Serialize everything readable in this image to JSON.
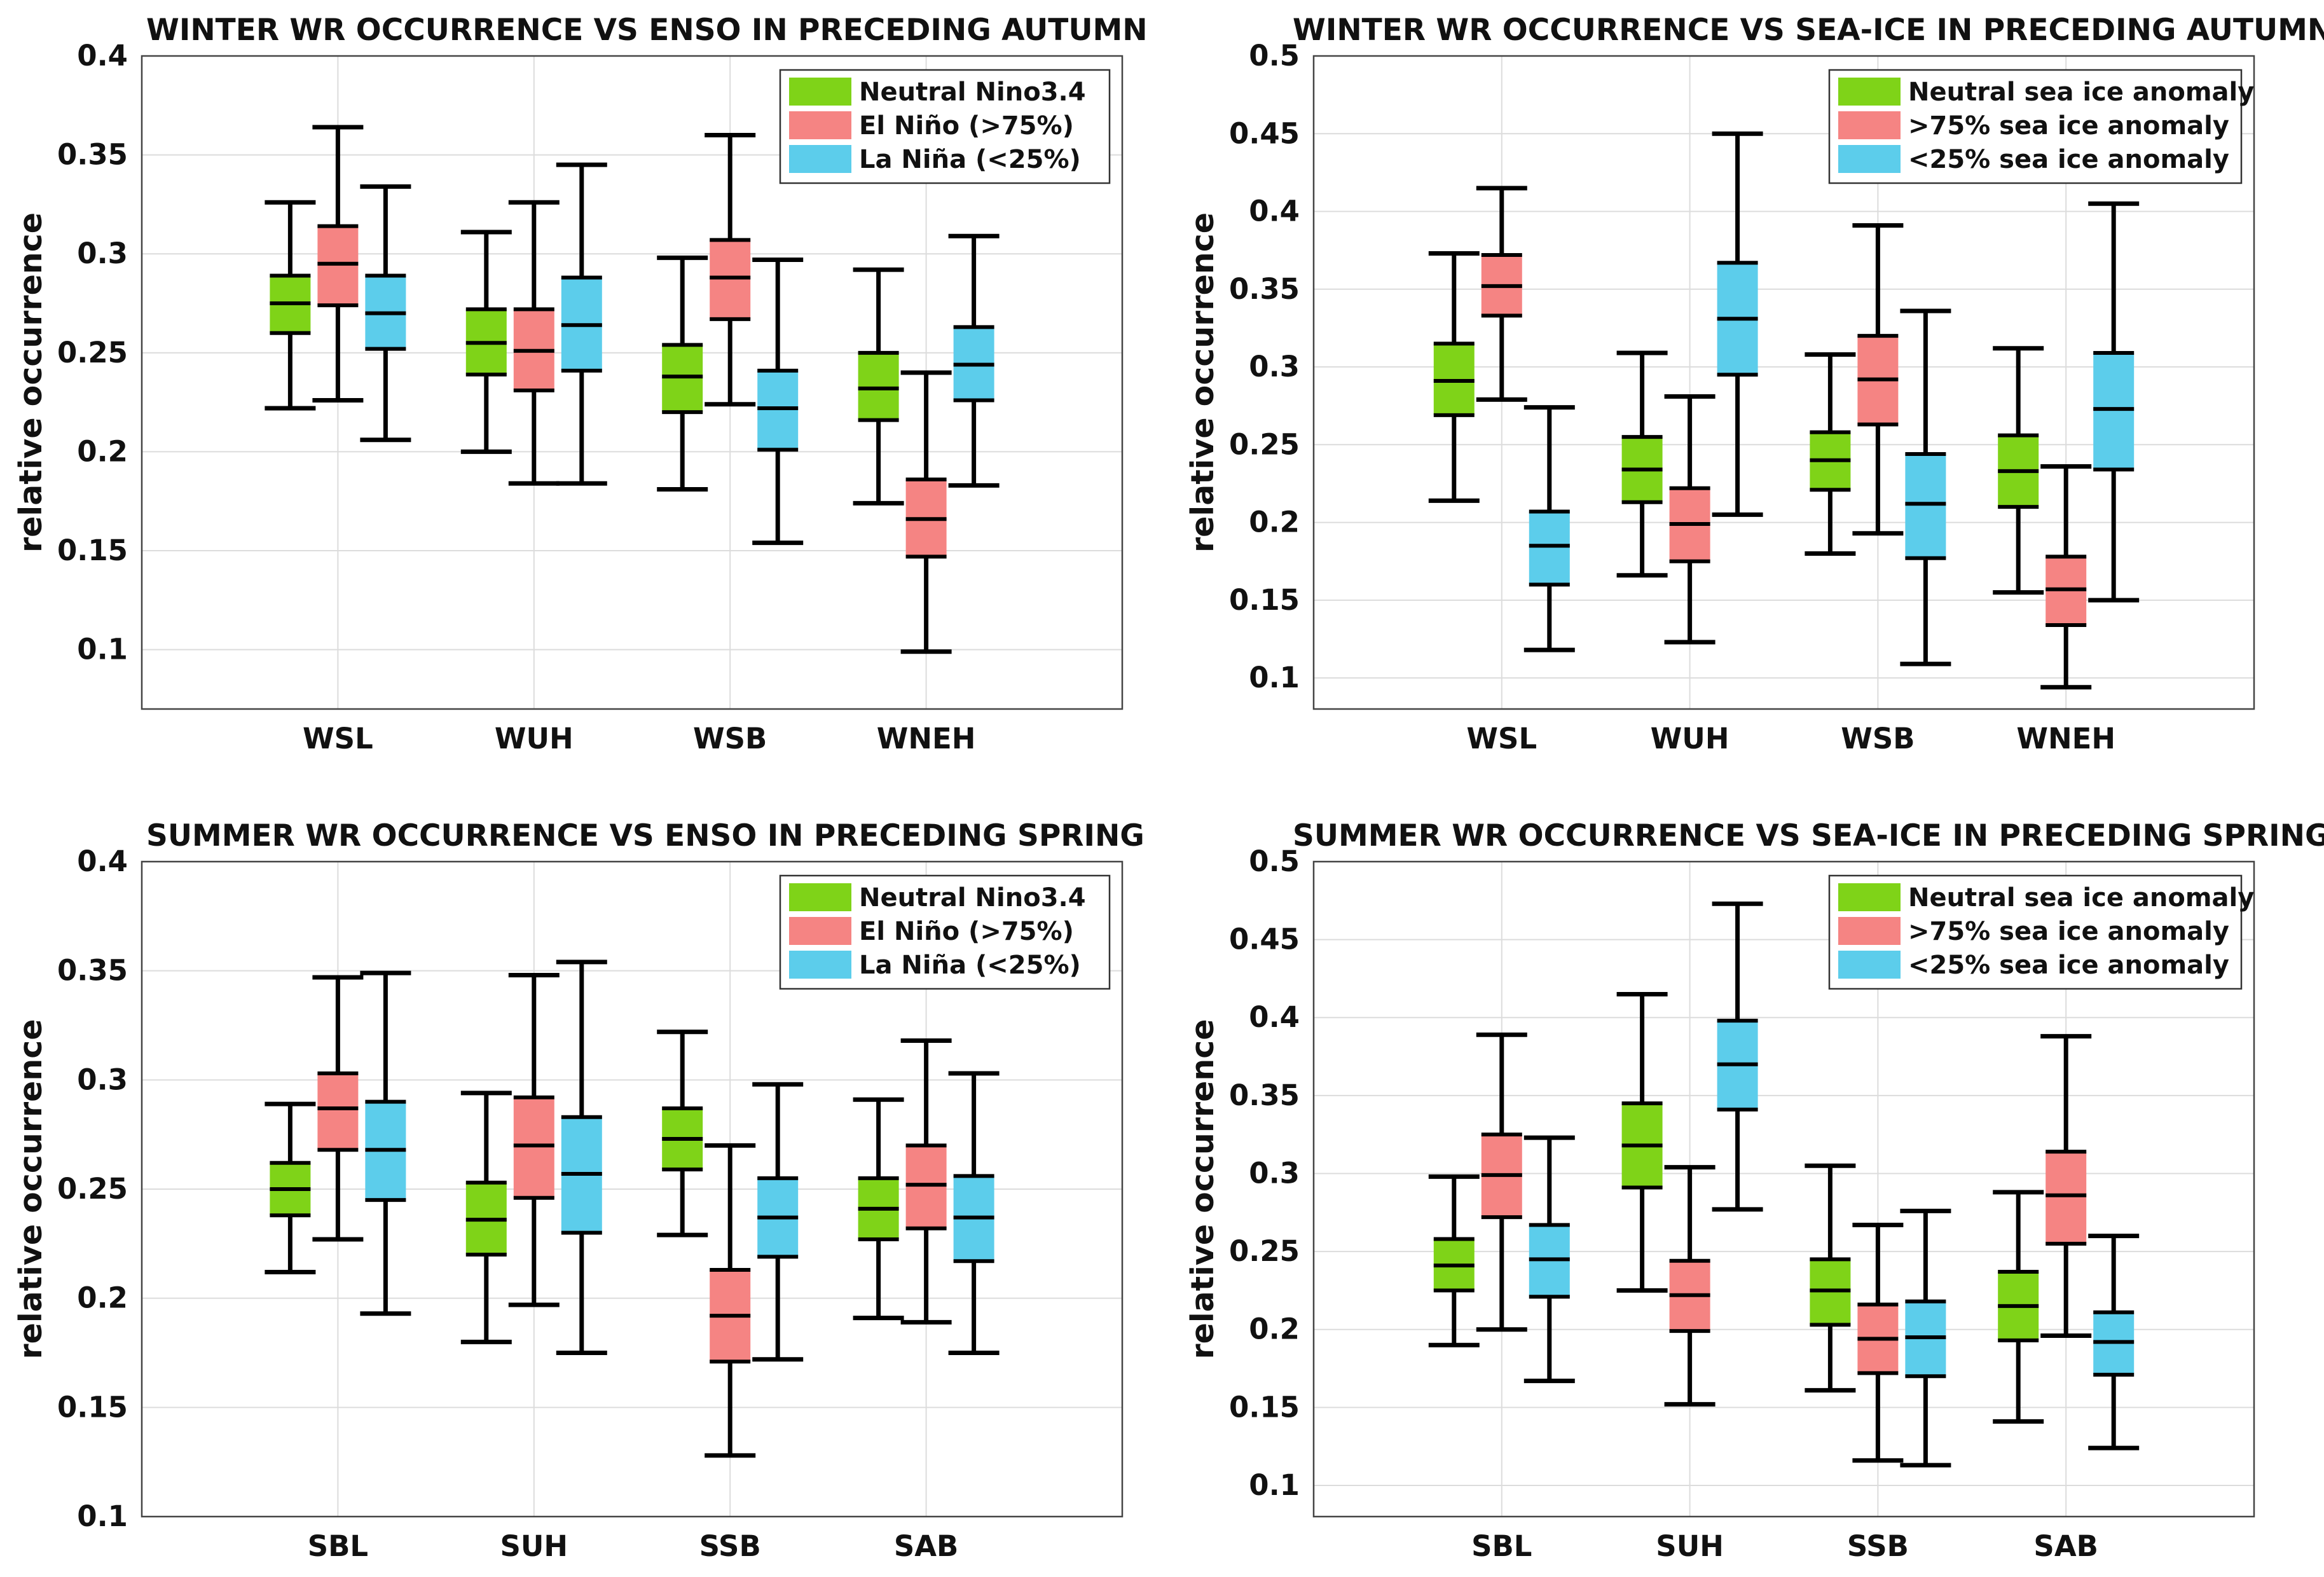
{
  "colors": {
    "green": "#7fd318",
    "red": "#f58483",
    "blue": "#5ccdeb"
  },
  "chart_data": [
    {
      "type": "box",
      "title": "WINTER WR OCCURRENCE VS ENSO IN PRECEDING AUTUMN",
      "ylabel": "relative occurrence",
      "ylim": [
        0.07,
        0.4
      ],
      "yticks": [
        0.1,
        0.15,
        0.2,
        0.25,
        0.3,
        0.35,
        0.4
      ],
      "yticklabels": [
        "0.1",
        "0.15",
        "0.2",
        "0.25",
        "0.3",
        "0.35",
        "0.4"
      ],
      "categories": [
        "WSL",
        "WUH",
        "WSB",
        "WNEH"
      ],
      "legend_position": "top-right",
      "series": [
        {
          "name": "Neutral Nino3.4",
          "color": "#7fd318",
          "boxes": [
            {
              "min": 0.222,
              "q1": 0.26,
              "median": 0.275,
              "q3": 0.289,
              "max": 0.326
            },
            {
              "min": 0.2,
              "q1": 0.239,
              "median": 0.255,
              "q3": 0.272,
              "max": 0.311
            },
            {
              "min": 0.181,
              "q1": 0.22,
              "median": 0.238,
              "q3": 0.254,
              "max": 0.298
            },
            {
              "min": 0.174,
              "q1": 0.216,
              "median": 0.232,
              "q3": 0.25,
              "max": 0.292
            }
          ]
        },
        {
          "name": "El Niño (>75%)",
          "color": "#f58483",
          "boxes": [
            {
              "min": 0.226,
              "q1": 0.274,
              "median": 0.295,
              "q3": 0.314,
              "max": 0.364
            },
            {
              "min": 0.184,
              "q1": 0.231,
              "median": 0.251,
              "q3": 0.272,
              "max": 0.326
            },
            {
              "min": 0.224,
              "q1": 0.267,
              "median": 0.288,
              "q3": 0.307,
              "max": 0.36
            },
            {
              "min": 0.099,
              "q1": 0.147,
              "median": 0.166,
              "q3": 0.186,
              "max": 0.24
            }
          ]
        },
        {
          "name": "La Niña (<25%)",
          "color": "#5ccdeb",
          "boxes": [
            {
              "min": 0.206,
              "q1": 0.252,
              "median": 0.27,
              "q3": 0.289,
              "max": 0.334
            },
            {
              "min": 0.184,
              "q1": 0.241,
              "median": 0.264,
              "q3": 0.288,
              "max": 0.345
            },
            {
              "min": 0.154,
              "q1": 0.201,
              "median": 0.222,
              "q3": 0.241,
              "max": 0.297
            },
            {
              "min": 0.183,
              "q1": 0.226,
              "median": 0.244,
              "q3": 0.263,
              "max": 0.309
            }
          ]
        }
      ]
    },
    {
      "type": "box",
      "title": "WINTER WR OCCURRENCE VS SEA-ICE IN PRECEDING AUTUMN",
      "ylabel": "relative occurrence",
      "ylim": [
        0.08,
        0.5
      ],
      "yticks": [
        0.1,
        0.15,
        0.2,
        0.25,
        0.3,
        0.35,
        0.4,
        0.45,
        0.5
      ],
      "yticklabels": [
        "0.1",
        "0.15",
        "0.2",
        "0.25",
        "0.3",
        "0.35",
        "0.4",
        "0.45",
        "0.5"
      ],
      "categories": [
        "WSL",
        "WUH",
        "WSB",
        "WNEH"
      ],
      "legend_position": "top-right",
      "series": [
        {
          "name": "Neutral sea ice anomaly",
          "color": "#7fd318",
          "boxes": [
            {
              "min": 0.214,
              "q1": 0.269,
              "median": 0.291,
              "q3": 0.315,
              "max": 0.373
            },
            {
              "min": 0.166,
              "q1": 0.213,
              "median": 0.234,
              "q3": 0.255,
              "max": 0.309
            },
            {
              "min": 0.18,
              "q1": 0.221,
              "median": 0.24,
              "q3": 0.258,
              "max": 0.308
            },
            {
              "min": 0.155,
              "q1": 0.21,
              "median": 0.233,
              "q3": 0.256,
              "max": 0.312
            }
          ]
        },
        {
          "name": ">75% sea ice anomaly",
          "color": "#f58483",
          "boxes": [
            {
              "min": 0.279,
              "q1": 0.333,
              "median": 0.352,
              "q3": 0.372,
              "max": 0.415
            },
            {
              "min": 0.123,
              "q1": 0.175,
              "median": 0.199,
              "q3": 0.222,
              "max": 0.281
            },
            {
              "min": 0.193,
              "q1": 0.263,
              "median": 0.292,
              "q3": 0.32,
              "max": 0.391
            },
            {
              "min": 0.094,
              "q1": 0.134,
              "median": 0.157,
              "q3": 0.178,
              "max": 0.236
            }
          ]
        },
        {
          "name": "<25% sea ice anomaly",
          "color": "#5ccdeb",
          "boxes": [
            {
              "min": 0.118,
              "q1": 0.16,
              "median": 0.185,
              "q3": 0.207,
              "max": 0.274
            },
            {
              "min": 0.205,
              "q1": 0.295,
              "median": 0.331,
              "q3": 0.367,
              "max": 0.45
            },
            {
              "min": 0.109,
              "q1": 0.177,
              "median": 0.212,
              "q3": 0.244,
              "max": 0.336
            },
            {
              "min": 0.15,
              "q1": 0.234,
              "median": 0.273,
              "q3": 0.309,
              "max": 0.405
            }
          ]
        }
      ]
    },
    {
      "type": "box",
      "title": "SUMMER WR OCCURRENCE VS ENSO IN PRECEDING SPRING",
      "ylabel": "relative occurrence",
      "ylim": [
        0.1,
        0.4
      ],
      "yticks": [
        0.1,
        0.15,
        0.2,
        0.25,
        0.3,
        0.35,
        0.4
      ],
      "yticklabels": [
        "0.1",
        "0.15",
        "0.2",
        "0.25",
        "0.3",
        "0.35",
        "0.4"
      ],
      "categories": [
        "SBL",
        "SUH",
        "SSB",
        "SAB"
      ],
      "legend_position": "top-right",
      "series": [
        {
          "name": "Neutral Nino3.4",
          "color": "#7fd318",
          "boxes": [
            {
              "min": 0.212,
              "q1": 0.238,
              "median": 0.25,
              "q3": 0.262,
              "max": 0.289
            },
            {
              "min": 0.18,
              "q1": 0.22,
              "median": 0.236,
              "q3": 0.253,
              "max": 0.294
            },
            {
              "min": 0.229,
              "q1": 0.259,
              "median": 0.273,
              "q3": 0.287,
              "max": 0.322
            },
            {
              "min": 0.191,
              "q1": 0.227,
              "median": 0.241,
              "q3": 0.255,
              "max": 0.291
            }
          ]
        },
        {
          "name": "El Niño (>75%)",
          "color": "#f58483",
          "boxes": [
            {
              "min": 0.227,
              "q1": 0.268,
              "median": 0.287,
              "q3": 0.303,
              "max": 0.347
            },
            {
              "min": 0.197,
              "q1": 0.246,
              "median": 0.27,
              "q3": 0.292,
              "max": 0.348
            },
            {
              "min": 0.128,
              "q1": 0.171,
              "median": 0.192,
              "q3": 0.213,
              "max": 0.27
            },
            {
              "min": 0.189,
              "q1": 0.232,
              "median": 0.252,
              "q3": 0.27,
              "max": 0.318
            }
          ]
        },
        {
          "name": "La Niña (<25%)",
          "color": "#5ccdeb",
          "boxes": [
            {
              "min": 0.193,
              "q1": 0.245,
              "median": 0.268,
              "q3": 0.29,
              "max": 0.349
            },
            {
              "min": 0.175,
              "q1": 0.23,
              "median": 0.257,
              "q3": 0.283,
              "max": 0.354
            },
            {
              "min": 0.172,
              "q1": 0.219,
              "median": 0.237,
              "q3": 0.255,
              "max": 0.298
            },
            {
              "min": 0.175,
              "q1": 0.217,
              "median": 0.237,
              "q3": 0.256,
              "max": 0.303
            }
          ]
        }
      ]
    },
    {
      "type": "box",
      "title": "SUMMER WR OCCURRENCE VS SEA-ICE IN PRECEDING SPRING",
      "ylabel": "relative occurrence",
      "ylim": [
        0.08,
        0.5
      ],
      "yticks": [
        0.1,
        0.15,
        0.2,
        0.25,
        0.3,
        0.35,
        0.4,
        0.45,
        0.5
      ],
      "yticklabels": [
        "0.1",
        "0.15",
        "0.2",
        "0.25",
        "0.3",
        "0.35",
        "0.4",
        "0.45",
        "0.5"
      ],
      "categories": [
        "SBL",
        "SUH",
        "SSB",
        "SAB"
      ],
      "legend_position": "top-right",
      "series": [
        {
          "name": "Neutral sea ice anomaly",
          "color": "#7fd318",
          "boxes": [
            {
              "min": 0.19,
              "q1": 0.225,
              "median": 0.241,
              "q3": 0.258,
              "max": 0.298
            },
            {
              "min": 0.225,
              "q1": 0.291,
              "median": 0.318,
              "q3": 0.345,
              "max": 0.415
            },
            {
              "min": 0.161,
              "q1": 0.203,
              "median": 0.225,
              "q3": 0.245,
              "max": 0.305
            },
            {
              "min": 0.141,
              "q1": 0.193,
              "median": 0.215,
              "q3": 0.237,
              "max": 0.288
            }
          ]
        },
        {
          "name": ">75% sea ice anomaly",
          "color": "#f58483",
          "boxes": [
            {
              "min": 0.2,
              "q1": 0.272,
              "median": 0.299,
              "q3": 0.325,
              "max": 0.389
            },
            {
              "min": 0.152,
              "q1": 0.199,
              "median": 0.222,
              "q3": 0.244,
              "max": 0.304
            },
            {
              "min": 0.116,
              "q1": 0.172,
              "median": 0.194,
              "q3": 0.216,
              "max": 0.267
            },
            {
              "min": 0.196,
              "q1": 0.255,
              "median": 0.286,
              "q3": 0.314,
              "max": 0.388
            }
          ]
        },
        {
          "name": "<25% sea ice anomaly",
          "color": "#5ccdeb",
          "boxes": [
            {
              "min": 0.167,
              "q1": 0.221,
              "median": 0.245,
              "q3": 0.267,
              "max": 0.323
            },
            {
              "min": 0.277,
              "q1": 0.341,
              "median": 0.37,
              "q3": 0.398,
              "max": 0.473
            },
            {
              "min": 0.113,
              "q1": 0.17,
              "median": 0.195,
              "q3": 0.218,
              "max": 0.276
            },
            {
              "min": 0.124,
              "q1": 0.171,
              "median": 0.192,
              "q3": 0.211,
              "max": 0.26
            }
          ]
        }
      ]
    }
  ]
}
